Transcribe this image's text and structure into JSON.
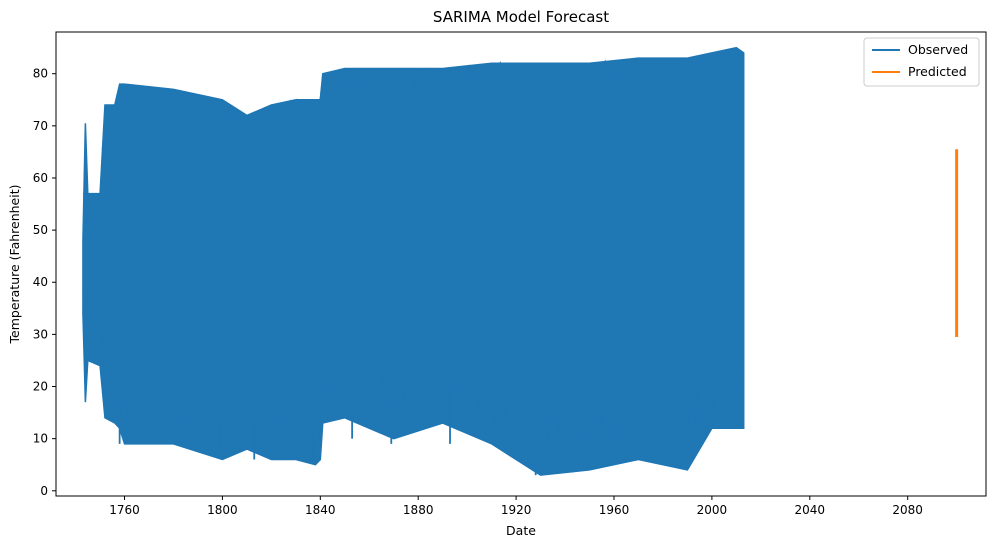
{
  "chart_data": {
    "type": "line",
    "title": "SARIMA Model Forecast",
    "xlabel": "Date",
    "ylabel": "Temperature (Fahrenheit)",
    "xlim": [
      1732,
      2112
    ],
    "ylim": [
      -1,
      88
    ],
    "xticks": [
      1760,
      1800,
      1840,
      1880,
      1920,
      1960,
      2000,
      2040,
      2080
    ],
    "yticks": [
      0,
      10,
      20,
      30,
      40,
      50,
      60,
      70,
      80
    ],
    "grid": false,
    "legend_position": "top-right",
    "series": [
      {
        "name": "Observed",
        "color": "#1f77b4",
        "x_range": [
          1743,
          2013
        ],
        "envelope": {
          "x": [
            1743,
            1744,
            1745,
            1750,
            1752,
            1756,
            1758,
            1760,
            1780,
            1800,
            1810,
            1820,
            1830,
            1838,
            1840,
            1841,
            1850,
            1870,
            1890,
            1910,
            1930,
            1950,
            1970,
            1990,
            2000,
            2010,
            2013
          ],
          "high": [
            48,
            70.5,
            57,
            57,
            74,
            74,
            78,
            78,
            77,
            75,
            72,
            74,
            75,
            75,
            75,
            80,
            81,
            81,
            81,
            82,
            82,
            82,
            83,
            83,
            84,
            85,
            84
          ],
          "low": [
            34,
            17,
            25,
            24,
            14,
            13,
            12,
            9,
            9,
            6,
            8,
            6,
            6,
            5,
            6,
            13,
            14,
            10,
            13,
            9,
            3,
            4,
            6,
            4,
            12,
            12,
            12
          ]
        },
        "spikes": [
          [
            1758,
            9
          ],
          [
            1768,
            9
          ],
          [
            1784,
            9.5
          ],
          [
            1799,
            8
          ],
          [
            1804,
            7
          ],
          [
            1813,
            6
          ],
          [
            1837,
            5.3
          ],
          [
            1853,
            10
          ],
          [
            1869,
            9
          ],
          [
            1893,
            9
          ],
          [
            1912,
            9
          ],
          [
            1928,
            3
          ],
          [
            1935,
            4
          ],
          [
            1943,
            3.5
          ],
          [
            1963,
            7
          ],
          [
            1982,
            6.5
          ],
          [
            1987,
            4.5
          ]
        ],
        "early_lines": [
          [
            1743,
            57
          ],
          [
            1744,
            57
          ],
          [
            1745,
            51
          ],
          [
            1750,
            48
          ]
        ],
        "end_point": [
          2013,
          83.5
        ]
      },
      {
        "name": "Predicted",
        "color": "#ff7f0e",
        "x": [
          2100,
          2100
        ],
        "y": [
          29.5,
          65.5
        ]
      }
    ]
  }
}
